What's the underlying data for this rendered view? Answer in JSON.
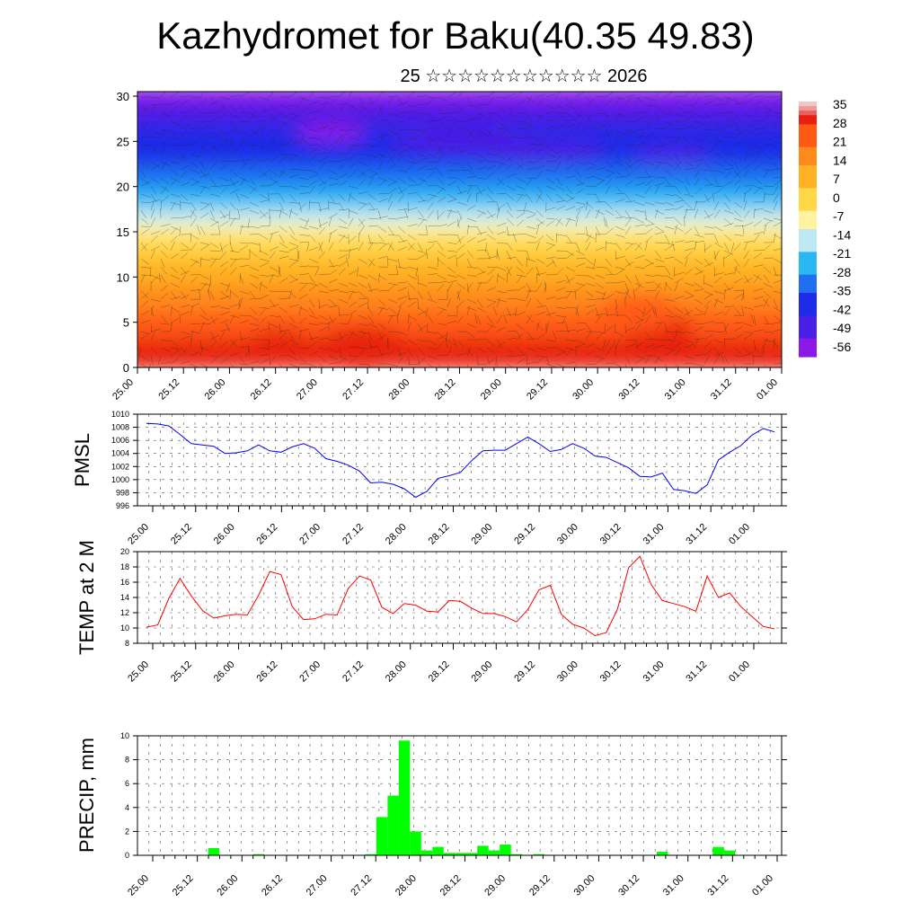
{
  "title": "Kazhydromet for Baku(40.35 49.83)",
  "subtitle": "25 ☆☆☆☆☆☆☆☆☆☆☆ 2026",
  "colors": {
    "pmsl_line": "#0000ff",
    "temp_line": "#ff0000",
    "precip_bar": "#00ff00",
    "cross_section_colors": [
      "#8b1ae8",
      "#4a1fe6",
      "#1e2be8",
      "#1f6ff0",
      "#29b8f2",
      "#bfe8f5",
      "#fff3a0",
      "#ffd84a",
      "#ffb224",
      "#ff8a1c",
      "#ff5a14",
      "#e8200f"
    ]
  },
  "time_ticks": [
    "25.00",
    "25.12",
    "26.00",
    "26.12",
    "27.00",
    "27.12",
    "28.00",
    "28.12",
    "29.00",
    "29.12",
    "30.00",
    "30.12",
    "31.00",
    "31.12",
    "01.00"
  ],
  "chart_data": [
    {
      "type": "heatmap",
      "y_ticks": [
        "0",
        "5",
        "10",
        "15",
        "20",
        "25",
        "30"
      ],
      "ylim": [
        0,
        30.5
      ],
      "colorbar_labels": [
        "35",
        "28",
        "21",
        "14",
        "7",
        "0",
        "-7",
        "-14",
        "-21",
        "-28",
        "-35",
        "-42",
        "-49",
        "-56"
      ],
      "overlay": "wind vectors"
    },
    {
      "type": "line",
      "ylabel": "PMSL",
      "y_ticks": [
        "1010",
        "1008",
        "1006",
        "1004",
        "1002",
        "1000",
        "998",
        "996"
      ],
      "ylim": [
        996,
        1010
      ],
      "grid": true,
      "values": [
        1008.6,
        1008.5,
        1008.2,
        1006.9,
        1005.5,
        1005.3,
        1005.1,
        1004.0,
        1004.1,
        1004.4,
        1005.3,
        1004.4,
        1004.2,
        1005.0,
        1005.5,
        1004.8,
        1003.2,
        1002.8,
        1002.2,
        1001.3,
        999.5,
        999.6,
        999.3,
        998.6,
        997.3,
        998.2,
        1000.2,
        1000.6,
        1001.1,
        1002.9,
        1004.4,
        1004.5,
        1004.5,
        1005.5,
        1006.5,
        1005.5,
        1004.3,
        1004.6,
        1005.5,
        1004.8,
        1003.6,
        1003.4,
        1002.6,
        1001.8,
        1000.5,
        1000.4,
        1001.0,
        998.5,
        998.3,
        997.9,
        999.2,
        1003.0,
        1004.2,
        1005.2,
        1006.8,
        1007.8,
        1007.3
      ]
    },
    {
      "type": "line",
      "ylabel": "TEMP at 2 M",
      "y_ticks": [
        "20",
        "18",
        "16",
        "14",
        "12",
        "10",
        "8"
      ],
      "ylim": [
        8,
        20
      ],
      "grid": true,
      "values": [
        10.1,
        10.4,
        13.9,
        16.5,
        14.2,
        12.3,
        11.3,
        11.6,
        11.8,
        11.7,
        14.3,
        17.4,
        17.0,
        12.8,
        11.1,
        11.2,
        11.8,
        11.7,
        15.2,
        16.8,
        16.3,
        12.7,
        11.9,
        13.2,
        13.0,
        12.2,
        12.1,
        13.6,
        13.5,
        12.6,
        11.9,
        11.9,
        11.5,
        10.8,
        12.4,
        15.0,
        15.6,
        11.8,
        10.5,
        10.0,
        9.0,
        9.4,
        12.5,
        17.9,
        19.4,
        15.7,
        13.6,
        13.2,
        12.8,
        12.2,
        16.8,
        14.0,
        14.6,
        12.8,
        11.5,
        10.2,
        9.9
      ]
    },
    {
      "type": "bar",
      "ylabel": "PRECIP, mm",
      "y_ticks": [
        "10",
        "8",
        "6",
        "4",
        "2",
        "0"
      ],
      "ylim": [
        0,
        10
      ],
      "grid": true,
      "values": [
        0,
        0,
        0,
        0,
        0,
        0,
        0.6,
        0,
        0,
        0,
        0.1,
        0,
        0,
        0,
        0,
        0,
        0,
        0,
        0,
        0,
        0.1,
        3.2,
        5.0,
        9.6,
        2.0,
        0.4,
        0.7,
        0.2,
        0.2,
        0.2,
        0.8,
        0.4,
        0.9,
        0.1,
        0,
        0.1,
        0,
        0,
        0,
        0,
        0,
        0,
        0,
        0,
        0,
        0,
        0.3,
        0,
        0,
        0,
        0,
        0.7,
        0.4,
        0,
        0,
        0,
        0
      ]
    }
  ]
}
